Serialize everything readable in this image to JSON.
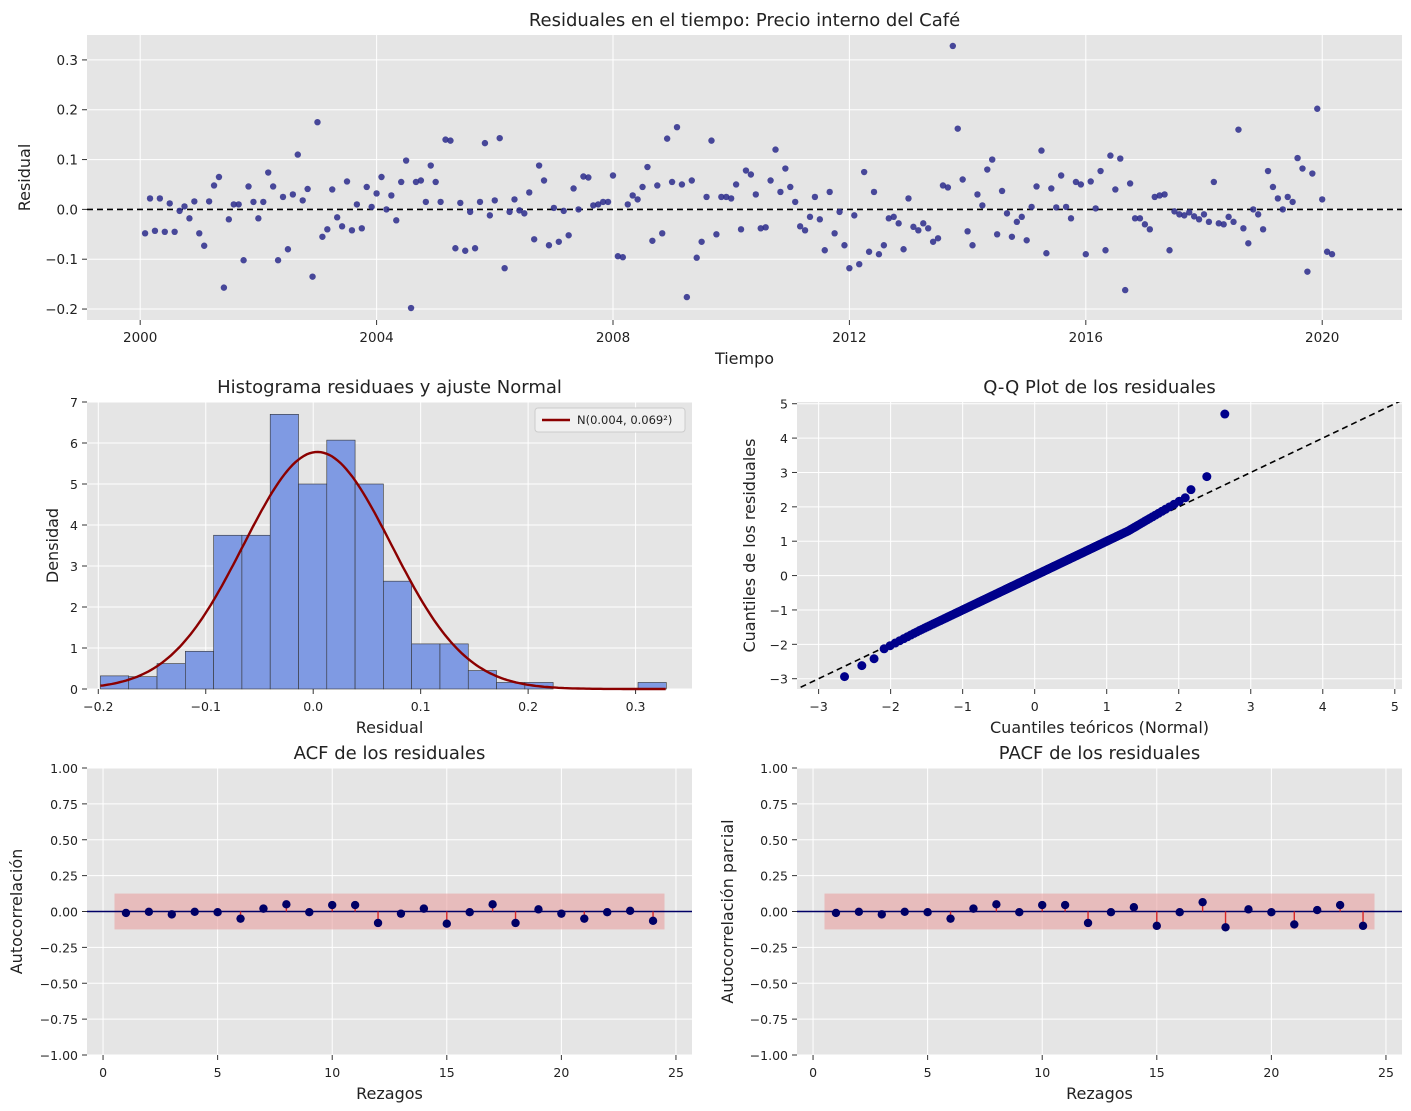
{
  "colors": {
    "panel_bg": "#e5e5e5",
    "grid": "#ffffff",
    "scatter": "#2b2b8c",
    "hist_fill": "#7f9ae3",
    "normal_curve": "#8b0000",
    "qq_points": "#00008b",
    "acf_points": "#000066",
    "conf_band": "#e8a0a0",
    "stem": "#d62728"
  },
  "chart_data": [
    {
      "id": "residuals_time",
      "type": "scatter",
      "title": "Residuales en el tiempo: Precio interno del Café",
      "xlabel": "Tiempo",
      "ylabel": "Residual",
      "xlim": [
        1999.1,
        2021.35
      ],
      "ylim": [
        -0.222,
        0.35
      ],
      "xticks": [
        2000,
        2004,
        2008,
        2012,
        2016,
        2020
      ],
      "yticks": [
        -0.2,
        -0.1,
        0.0,
        0.1,
        0.2,
        0.3
      ],
      "ytick_labels": [
        "−0.2",
        "−0.1",
        "0.0",
        "0.1",
        "0.2",
        "0.3"
      ],
      "hline": 0,
      "x_start": 2000.083,
      "x_step": 0.0833333,
      "values": [
        -0.048,
        0.022,
        -0.043,
        0.022,
        -0.045,
        0.012,
        -0.045,
        -0.003,
        0.006,
        -0.018,
        0.016,
        -0.048,
        -0.073,
        0.016,
        0.048,
        0.065,
        -0.157,
        -0.02,
        0.01,
        0.01,
        -0.102,
        0.046,
        0.015,
        -0.018,
        0.015,
        0.074,
        0.046,
        -0.102,
        0.025,
        -0.08,
        0.03,
        0.11,
        0.018,
        0.041,
        -0.135,
        0.175,
        -0.055,
        -0.04,
        0.04,
        -0.016,
        -0.034,
        0.056,
        -0.042,
        0.01,
        -0.038,
        0.045,
        0.005,
        0.032,
        0.065,
        0.0,
        0.028,
        -0.022,
        0.055,
        0.098,
        -0.198,
        0.055,
        0.058,
        0.015,
        0.088,
        0.055,
        0.015,
        0.14,
        0.138,
        -0.078,
        0.013,
        -0.083,
        -0.005,
        -0.078,
        0.015,
        0.133,
        -0.012,
        0.018,
        0.143,
        -0.118,
        -0.005,
        0.02,
        -0.002,
        -0.008,
        0.034,
        -0.06,
        0.088,
        0.058,
        -0.072,
        0.003,
        -0.065,
        -0.003,
        -0.052,
        0.042,
        0.0,
        0.066,
        0.064,
        0.008,
        0.01,
        0.015,
        0.015,
        0.068,
        -0.094,
        -0.096,
        0.01,
        0.028,
        0.02,
        0.045,
        0.085,
        -0.063,
        0.048,
        -0.048,
        0.142,
        0.055,
        0.165,
        0.05,
        -0.176,
        0.058,
        -0.097,
        -0.065,
        0.025,
        0.138,
        -0.05,
        0.025,
        0.025,
        0.022,
        0.05,
        -0.04,
        0.078,
        0.07,
        0.03,
        -0.038,
        -0.036,
        0.058,
        0.12,
        0.035,
        0.082,
        0.045,
        0.015,
        -0.034,
        -0.042,
        -0.015,
        0.025,
        -0.02,
        -0.082,
        0.035,
        -0.048,
        -0.005,
        -0.072,
        -0.118,
        -0.012,
        -0.11,
        0.075,
        -0.085,
        0.035,
        -0.09,
        -0.072,
        -0.018,
        -0.015,
        -0.028,
        -0.08,
        0.022,
        -0.035,
        -0.042,
        -0.028,
        -0.038,
        -0.065,
        -0.058,
        0.048,
        0.044,
        0.328,
        0.162,
        0.06,
        -0.044,
        -0.072,
        0.03,
        0.008,
        0.08,
        0.1,
        -0.05,
        0.037,
        -0.008,
        -0.055,
        -0.025,
        -0.015,
        -0.062,
        0.005,
        0.046,
        0.118,
        -0.088,
        0.042,
        0.004,
        0.068,
        0.005,
        -0.018,
        0.055,
        0.05,
        -0.09,
        0.056,
        0.002,
        0.077,
        -0.082,
        0.108,
        0.04,
        0.102,
        -0.162,
        0.052,
        -0.018,
        -0.018,
        -0.03,
        -0.04,
        0.025,
        0.028,
        0.03,
        -0.082,
        -0.004,
        -0.01,
        -0.012,
        -0.006,
        -0.014,
        -0.02,
        -0.01,
        -0.025,
        0.055,
        -0.028,
        -0.03,
        -0.015,
        -0.025,
        0.16,
        -0.038,
        -0.068,
        0.0,
        -0.01,
        -0.04,
        0.077,
        0.045,
        0.022,
        0.0,
        0.025,
        0.015,
        0.103,
        0.082,
        -0.125,
        0.072,
        0.202,
        0.02,
        -0.085,
        -0.09
      ]
    },
    {
      "id": "histogram",
      "type": "bar",
      "title": "Histograma residuaes y ajuste Normal",
      "xlabel": "Residual",
      "ylabel": "Densidad",
      "xlim": [
        -0.2105,
        0.3525
      ],
      "ylim": [
        0,
        7
      ],
      "xticks": [
        -0.2,
        -0.1,
        0.0,
        0.1,
        0.2,
        0.3
      ],
      "xtick_labels": [
        "−0.2",
        "−0.1",
        "0.0",
        "0.1",
        "0.2",
        "0.3"
      ],
      "yticks": [
        0,
        1,
        2,
        3,
        4,
        5,
        6,
        7
      ],
      "bins_start": -0.198,
      "bin_width": 0.02633,
      "densities": [
        0.32,
        0.3,
        0.62,
        0.92,
        3.75,
        3.75,
        6.7,
        5.0,
        6.07,
        5.0,
        2.63,
        1.1,
        1.1,
        0.45,
        0.16,
        0.16,
        0,
        0,
        0,
        0.16
      ],
      "normal_fit": {
        "mean": 0.004,
        "sd": 0.069
      },
      "legend": "N(0.004, 0.069²)",
      "legend_position": "upper right"
    },
    {
      "id": "qq_plot",
      "type": "scatter",
      "title": "Q-Q Plot de los residuales",
      "xlabel": "Cuantiles teóricos (Normal)",
      "ylabel": "Cuantiles de los residuales",
      "xlim": [
        -3.3,
        5.1
      ],
      "ylim": [
        -3.3,
        5.05
      ],
      "xticks": [
        -3,
        -2,
        -1,
        0,
        1,
        2,
        3,
        4,
        5
      ],
      "xtick_labels": [
        "−3",
        "−2",
        "−1",
        "0",
        "1",
        "2",
        "3",
        "4",
        "5"
      ],
      "yticks": [
        -3,
        -2,
        -1,
        0,
        1,
        2,
        3,
        4,
        5
      ],
      "ytick_labels": [
        "−3",
        "−2",
        "−1",
        "0",
        "1",
        "2",
        "3",
        "4",
        "5"
      ],
      "reference_line": {
        "slope": 1,
        "intercept": 0
      },
      "n_points": 246,
      "notable_points": [
        [
          -2.64,
          -2.94
        ],
        [
          -2.4,
          -2.62
        ],
        [
          -2.23,
          -2.42
        ],
        [
          2.17,
          2.5
        ],
        [
          2.39,
          2.88
        ],
        [
          2.64,
          4.7
        ]
      ]
    },
    {
      "id": "acf",
      "type": "stem",
      "title": "ACF de los residuales",
      "xlabel": "Rezagos",
      "ylabel": "Autocorrelación",
      "xlim": [
        -0.7,
        25.7
      ],
      "ylim": [
        -1,
        1
      ],
      "xticks": [
        0,
        5,
        10,
        15,
        20,
        25
      ],
      "yticks": [
        -1.0,
        -0.75,
        -0.5,
        -0.25,
        0.0,
        0.25,
        0.5,
        0.75,
        1.0
      ],
      "ytick_labels": [
        "−1.00",
        "−0.75",
        "−0.50",
        "−0.25",
        "0.00",
        "0.25",
        "0.50",
        "0.75",
        "1.00"
      ],
      "conf_band": [
        -0.125,
        0.125
      ],
      "conf_band_x": [
        0.5,
        24.5
      ],
      "lags": [
        1,
        2,
        3,
        4,
        5,
        6,
        7,
        8,
        9,
        10,
        11,
        12,
        13,
        14,
        15,
        16,
        17,
        18,
        19,
        20,
        21,
        22,
        23,
        24
      ],
      "values": [
        -0.01,
        -0.002,
        -0.02,
        -0.002,
        -0.005,
        -0.05,
        0.02,
        0.05,
        -0.005,
        0.045,
        0.045,
        -0.08,
        -0.015,
        0.02,
        -0.085,
        -0.005,
        0.05,
        -0.08,
        0.015,
        -0.015,
        -0.05,
        -0.005,
        0.005,
        -0.065
      ]
    },
    {
      "id": "pacf",
      "type": "stem",
      "title": "PACF de los residuales",
      "xlabel": "Rezagos",
      "ylabel": "Autocorrelación parcial",
      "xlim": [
        -0.7,
        25.7
      ],
      "ylim": [
        -1,
        1
      ],
      "xticks": [
        0,
        5,
        10,
        15,
        20,
        25
      ],
      "yticks": [
        -1.0,
        -0.75,
        -0.5,
        -0.25,
        0.0,
        0.25,
        0.5,
        0.75,
        1.0
      ],
      "ytick_labels": [
        "−1.00",
        "−0.75",
        "−0.50",
        "−0.25",
        "0.00",
        "0.25",
        "0.50",
        "0.75",
        "1.00"
      ],
      "conf_band": [
        -0.125,
        0.125
      ],
      "conf_band_x": [
        0.5,
        24.5
      ],
      "lags": [
        1,
        2,
        3,
        4,
        5,
        6,
        7,
        8,
        9,
        10,
        11,
        12,
        13,
        14,
        15,
        16,
        17,
        18,
        19,
        20,
        21,
        22,
        23,
        24
      ],
      "values": [
        -0.01,
        -0.002,
        -0.02,
        -0.002,
        -0.005,
        -0.05,
        0.02,
        0.05,
        -0.005,
        0.045,
        0.045,
        -0.08,
        -0.005,
        0.03,
        -0.1,
        -0.005,
        0.065,
        -0.11,
        0.015,
        -0.005,
        -0.09,
        0.01,
        0.045,
        -0.1
      ]
    }
  ]
}
